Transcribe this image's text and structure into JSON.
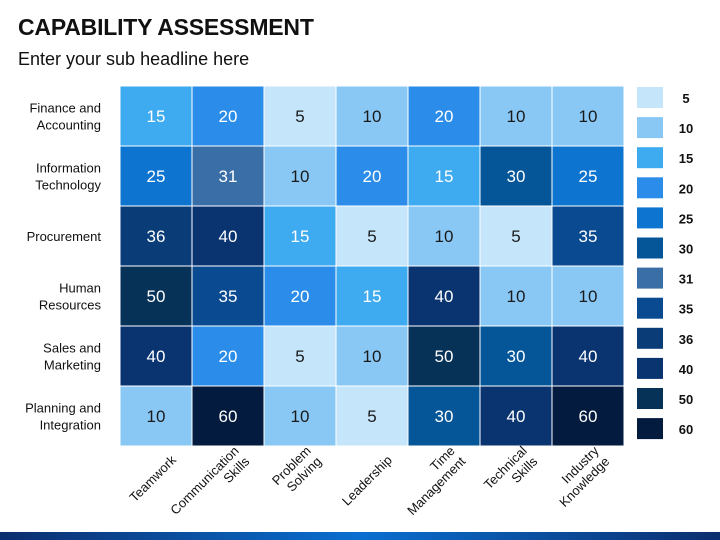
{
  "header": {
    "title": "CAPABILITY ASSESSMENT",
    "subtitle": "Enter your sub headline here"
  },
  "chart_data": {
    "type": "heatmap",
    "rows": [
      [
        "Finance and",
        "Accounting"
      ],
      [
        "Information",
        "Technology"
      ],
      [
        "Procurement"
      ],
      [
        "Human",
        "Resources"
      ],
      [
        "Sales and",
        "Marketing"
      ],
      [
        "Planning and",
        "Integration"
      ]
    ],
    "columns": [
      [
        "Teamwork"
      ],
      [
        "Communication",
        "Skills"
      ],
      [
        "Problem",
        "Solving"
      ],
      [
        "Leadership"
      ],
      [
        "Time",
        "Management"
      ],
      [
        "Technical",
        "Skills"
      ],
      [
        "Industry",
        "Knowledge"
      ]
    ],
    "values": [
      [
        15,
        20,
        5,
        10,
        20,
        10,
        10
      ],
      [
        25,
        31,
        10,
        20,
        15,
        30,
        25
      ],
      [
        36,
        40,
        15,
        5,
        10,
        5,
        35
      ],
      [
        50,
        35,
        20,
        15,
        40,
        10,
        10
      ],
      [
        40,
        20,
        5,
        10,
        50,
        30,
        40
      ],
      [
        10,
        60,
        10,
        5,
        30,
        40,
        60
      ]
    ],
    "legend": {
      "placement": "right",
      "items": [
        {
          "label": "5",
          "color": "#c5e5fb"
        },
        {
          "label": "10",
          "color": "#89c8f5"
        },
        {
          "label": "15",
          "color": "#3eaaf0"
        },
        {
          "label": "20",
          "color": "#2b8de9"
        },
        {
          "label": "25",
          "color": "#0d74cf"
        },
        {
          "label": "30",
          "color": "#045699"
        },
        {
          "label": "31",
          "color": "#3a6ea7"
        },
        {
          "label": "35",
          "color": "#0a4a90"
        },
        {
          "label": "36",
          "color": "#0a3d77"
        },
        {
          "label": "40",
          "color": "#093470"
        },
        {
          "label": "50",
          "color": "#073258"
        },
        {
          "label": "60",
          "color": "#031b3e"
        }
      ]
    },
    "dark_text_values": [
      5,
      10
    ],
    "grid_color": "#ffffff"
  }
}
